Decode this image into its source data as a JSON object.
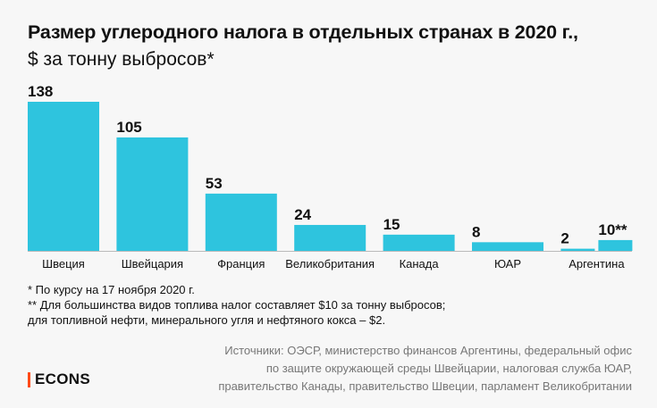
{
  "title": "Размер углеродного налога в отдельных странах в 2020 г.,",
  "subtitle": "$ за тонну выбросов*",
  "notes": [
    "* По курсу на 17 ноября 2020 г.",
    "** Для большинства видов топлива налог составляет $10 за тонну выбросов;",
    "для топливной нефти, минерального угля и нефтяного кокса – $2."
  ],
  "sources": [
    "Источники: ОЭСР, министерство финансов Аргентины, федеральный офис",
    "по защите окружающей среды Швейцарии, налоговая служба ЮАР,",
    "правительство Канады, правительство Швеции, парламент Великобритании"
  ],
  "logo": "ECONS",
  "colors": {
    "bar": "#2ec4de",
    "accent": "#ff4a17",
    "axis": "#bbbbbb"
  },
  "chart_data": {
    "type": "bar",
    "categories": [
      "Швеция",
      "Швейцария",
      "Франция",
      "Великобритания",
      "Канада",
      "ЮАР",
      "Аргентина"
    ],
    "values": [
      138,
      105,
      53,
      24,
      15,
      8,
      10
    ],
    "secondary_values": {
      "Аргентина": 2
    },
    "data_labels": [
      "138",
      "105",
      "53",
      "24",
      "15",
      "8",
      "10**"
    ],
    "secondary_label": "2",
    "title": "Размер углеродного налога в отдельных странах в 2020 г.,",
    "ylabel": "$ за тонну выбросов*",
    "ylim": [
      0,
      138
    ],
    "grid": false
  }
}
